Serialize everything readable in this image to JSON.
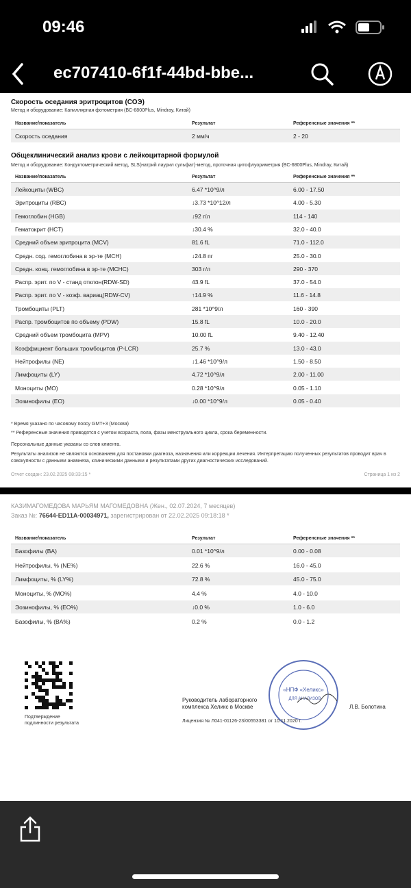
{
  "status": {
    "time": "09:46"
  },
  "nav": {
    "title": "ec707410-6f1f-44bd-bbe..."
  },
  "page1": {
    "section1": {
      "title": "Скорость оседания эритроцитов (СОЭ)",
      "method": "Метод и оборудование: Капиллярная фотометрия (BC-6800Plus, Mindray, Китай)",
      "header": [
        "Название/показатель",
        "Результат",
        "Референсные значения **"
      ],
      "rows": [
        [
          "Скорость оседания",
          "2 мм/ч",
          "2 - 20"
        ]
      ]
    },
    "section2": {
      "title": "Общеклинический анализ крови с лейкоцитарной формулой",
      "method": "Метод и оборудование: Кондуктометрический метод, SLS(натрий лаурил сульфат)-метод, проточная цитофлуориметрия (BC-6800Plus, Mindray, Китай)",
      "header": [
        "Название/показатель",
        "Результат",
        "Референсные значения **"
      ],
      "rows": [
        [
          "Лейкоциты (WBC)",
          "6.47 *10^9/л",
          "6.00 - 17.50"
        ],
        [
          "Эритроциты (RBC)",
          "↓3.73 *10^12/л",
          "4.00 - 5.30"
        ],
        [
          "Гемоглобин (HGB)",
          "↓92 г/л",
          "114 - 140"
        ],
        [
          "Гематокрит (HCT)",
          "↓30.4 %",
          "32.0 - 40.0"
        ],
        [
          "Средний объем эритроцита (MCV)",
          "81.6 fL",
          "71.0 - 112.0"
        ],
        [
          "Средн. сод. гемоглобина в эр-те (MCH)",
          "↓24.8 пг",
          "25.0 - 30.0"
        ],
        [
          "Средн. конц. гемоглобина в эр-те (MCHC)",
          "303 г/л",
          "290 - 370"
        ],
        [
          "Распр. эрит. по V - станд отклон(RDW-SD)",
          "43.9 fL",
          "37.0 - 54.0"
        ],
        [
          "Распр. эрит. по V - коэф. вариац(RDW-CV)",
          "↑14.9 %",
          "11.6 - 14.8"
        ],
        [
          "Тромбоциты (PLT)",
          "281 *10^9/л",
          "160 - 390"
        ],
        [
          "Распр. тромбоцитов по объему (PDW)",
          "15.8 fL",
          "10.0 - 20.0"
        ],
        [
          "Средний объем тромбоцита (MPV)",
          "10.00 fL",
          "9.40 - 12.40"
        ],
        [
          "Коэффициент больших тромбоцитов (P-LCR)",
          "25.7 %",
          "13.0 - 43.0"
        ],
        [
          "Нейтрофилы (NE)",
          "↓1.46 *10^9/л",
          "1.50 - 8.50"
        ],
        [
          "Лимфоциты (LY)",
          "4.72 *10^9/л",
          "2.00 - 11.00"
        ],
        [
          "Моноциты (MO)",
          "0.28 *10^9/л",
          "0.05 - 1.10"
        ],
        [
          "Эозинофилы (EO)",
          "↓0.00 *10^9/л",
          "0.05 - 0.40"
        ]
      ]
    },
    "notes": [
      "* Время указано по часовому поясу GMT+3 (Москва)",
      "** Референсные значения приводятся с учетом возраста, пола, фазы менструального цикла, срока беременности.",
      "Персональные данные указаны со слов клиента.",
      "Результаты анализов не являются основанием для постановки диагноза, назначения или коррекции лечения. Интерпретацию полученных результатов проводит врач в совокупности с данными анамнеза, клиническими данными и результатами других диагностических исследований."
    ],
    "created": "Отчет создан: 23.02.2025 08:33:15 *",
    "page": "Страница 1 из 2"
  },
  "page2": {
    "patient": "КАЗИМАГОМЕДОВА МАРЬЯМ МАГОМЕДОВНА (Жен., 02.07.2024, 7 месяцев)",
    "order_label": "Заказ №:",
    "order_number": "76644-ED11A-00034971,",
    "order_rest": "зарегистрирован от 22.02.2025 09:18:18 *",
    "header": [
      "Название/показатель",
      "Результат",
      "Референсные значения **"
    ],
    "rows": [
      [
        "Базофилы (BA)",
        "0.01 *10^9/л",
        "0.00 - 0.08"
      ],
      [
        "Нейтрофилы, % (NE%)",
        "22.6 %",
        "16.0 - 45.0"
      ],
      [
        "Лимфоциты, % (LY%)",
        "72.8 %",
        "45.0 - 75.0"
      ],
      [
        "Моноциты, % (MO%)",
        "4.4 %",
        "4.0 - 10.0"
      ],
      [
        "Эозинофилы, % (EO%)",
        "↓0.0 %",
        "1.0 - 6.0"
      ],
      [
        "Базофилы, % (BA%)",
        "0.2 %",
        "0.0 - 1.2"
      ]
    ],
    "qr_caption": [
      "Подтверждение",
      "подлинности результата"
    ],
    "signer_role": [
      "Руководитель лабораторного",
      "комплекса Хеликс в Москве"
    ],
    "signer_name": "Л.В. Болотина",
    "stamp": [
      "«НПФ «Хеликс»",
      "ДЛЯ АНАЛИЗОВ"
    ],
    "license": "Лицензия № Л041-01126-23/00553381 от 10.11.2020 г."
  }
}
